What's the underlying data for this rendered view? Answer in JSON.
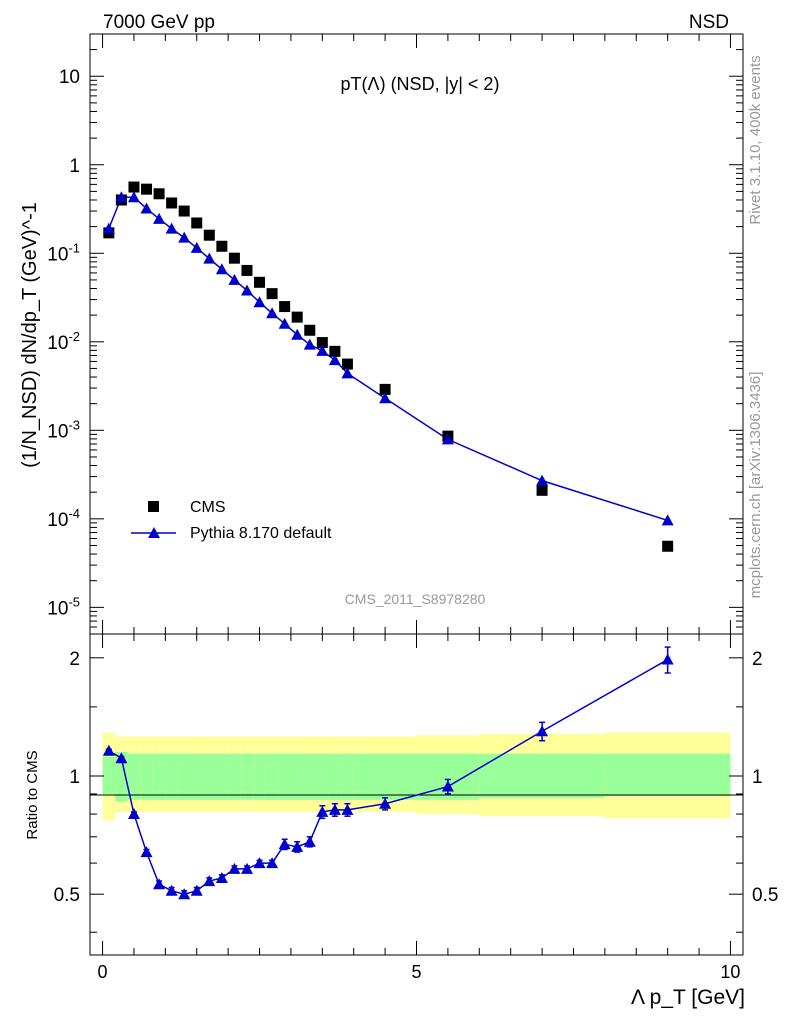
{
  "header": {
    "energy": "7000 GeV pp",
    "process": "NSD"
  },
  "side": {
    "rivet": "Rivet 3.1.10,  400k events",
    "mcplots": "mcplots.cern.ch [arXiv:1306.3436]"
  },
  "chart_data": {
    "type": "scatter",
    "title_main": "pT(Λ) (NSD, |y| < 2)",
    "analysis_label": "CMS_2011_S8978280",
    "ylabel_main": "(1/N_NSD) dN/dp_T (GeV)^-1",
    "ylabel_ratio": "Ratio to CMS",
    "xlabel": "Λ p_T [GeV]",
    "xlim": [
      -0.2,
      10.2
    ],
    "ylim_main": [
      5e-06,
      30
    ],
    "ylim_ratio": [
      0.35,
      2.3
    ],
    "x_ticks": [
      "0",
      "5",
      "10"
    ],
    "y_ticks_main": [
      "10",
      "1",
      "10^-1",
      "10^-2",
      "10^-3",
      "10^-4",
      "10^-5"
    ],
    "y_ticks_ratio": [
      "2",
      "1",
      "0.5"
    ],
    "legend": [
      {
        "label": "CMS",
        "marker": "square",
        "color": "#000000"
      },
      {
        "label": "Pythia 8.170 default",
        "marker": "triangle",
        "color": "#0000cc"
      }
    ],
    "series": [
      {
        "name": "CMS",
        "x": [
          0.1,
          0.3,
          0.5,
          0.7,
          0.9,
          1.1,
          1.3,
          1.5,
          1.7,
          1.9,
          2.1,
          2.3,
          2.5,
          2.7,
          2.9,
          3.1,
          3.3,
          3.5,
          3.7,
          3.9,
          4.5,
          5.5,
          7.0,
          9.0
        ],
        "values": [
          0.17,
          0.4,
          0.56,
          0.53,
          0.47,
          0.37,
          0.3,
          0.22,
          0.16,
          0.12,
          0.088,
          0.064,
          0.047,
          0.035,
          0.025,
          0.019,
          0.0135,
          0.0098,
          0.0078,
          0.0056,
          0.0029,
          0.00086,
          0.00021,
          4.9e-05
        ]
      },
      {
        "name": "Pythia 8.170 default",
        "x": [
          0.1,
          0.3,
          0.5,
          0.7,
          0.9,
          1.1,
          1.3,
          1.5,
          1.7,
          1.9,
          2.1,
          2.3,
          2.5,
          2.7,
          2.9,
          3.1,
          3.3,
          3.5,
          3.7,
          3.9,
          4.5,
          5.5,
          7.0,
          9.0
        ],
        "values": [
          0.19,
          0.43,
          0.43,
          0.32,
          0.245,
          0.19,
          0.15,
          0.115,
          0.087,
          0.066,
          0.05,
          0.038,
          0.028,
          0.021,
          0.016,
          0.012,
          0.0093,
          0.0079,
          0.0062,
          0.0044,
          0.0023,
          0.00079,
          0.00027,
          9.6e-05
        ]
      }
    ],
    "ratio": {
      "x": [
        0.1,
        0.3,
        0.5,
        0.7,
        0.9,
        1.1,
        1.3,
        1.5,
        1.7,
        1.9,
        2.1,
        2.3,
        2.5,
        2.7,
        2.9,
        3.1,
        3.3,
        3.5,
        3.7,
        3.9,
        4.5,
        5.5,
        7.0,
        9.0
      ],
      "values": [
        1.16,
        1.11,
        0.8,
        0.64,
        0.53,
        0.51,
        0.5,
        0.51,
        0.54,
        0.55,
        0.58,
        0.58,
        0.6,
        0.6,
        0.67,
        0.66,
        0.68,
        0.81,
        0.82,
        0.82,
        0.85,
        0.94,
        1.3,
        1.98
      ],
      "errors": [
        0.01,
        0.01,
        0.01,
        0.01,
        0.01,
        0.01,
        0.01,
        0.01,
        0.01,
        0.01,
        0.01,
        0.01,
        0.01,
        0.01,
        0.02,
        0.02,
        0.02,
        0.03,
        0.03,
        0.03,
        0.03,
        0.04,
        0.07,
        0.15
      ]
    },
    "ratio_bands": {
      "edges": [
        0,
        0.2,
        0.4,
        0.6,
        0.8,
        1.0,
        1.2,
        1.4,
        1.6,
        1.8,
        2.0,
        2.2,
        2.4,
        2.6,
        2.8,
        3.0,
        3.2,
        3.4,
        3.6,
        3.8,
        4.0,
        5.0,
        6.0,
        8.0,
        10.0
      ],
      "stat_lo": [
        0.9,
        0.86,
        0.87,
        0.87,
        0.87,
        0.87,
        0.87,
        0.87,
        0.87,
        0.87,
        0.87,
        0.87,
        0.87,
        0.87,
        0.87,
        0.87,
        0.87,
        0.87,
        0.87,
        0.87,
        0.87,
        0.87,
        0.88,
        0.89
      ],
      "stat_hi": [
        1.12,
        1.15,
        1.14,
        1.14,
        1.14,
        1.14,
        1.14,
        1.14,
        1.14,
        1.14,
        1.14,
        1.14,
        1.14,
        1.14,
        1.14,
        1.14,
        1.14,
        1.14,
        1.14,
        1.14,
        1.14,
        1.14,
        1.14,
        1.14
      ],
      "tot_lo": [
        0.77,
        0.81,
        0.81,
        0.81,
        0.81,
        0.81,
        0.81,
        0.81,
        0.81,
        0.81,
        0.81,
        0.81,
        0.81,
        0.81,
        0.81,
        0.81,
        0.81,
        0.81,
        0.81,
        0.81,
        0.81,
        0.8,
        0.79,
        0.78
      ],
      "tot_hi": [
        1.29,
        1.26,
        1.26,
        1.26,
        1.26,
        1.26,
        1.26,
        1.26,
        1.26,
        1.26,
        1.26,
        1.26,
        1.26,
        1.26,
        1.26,
        1.26,
        1.26,
        1.26,
        1.26,
        1.26,
        1.26,
        1.27,
        1.28,
        1.29
      ]
    },
    "colors": {
      "mc": "#0000cc",
      "data": "#000000",
      "band_inner": "#99ff99",
      "band_outer": "#ffff99",
      "side_text": "#999999"
    }
  }
}
